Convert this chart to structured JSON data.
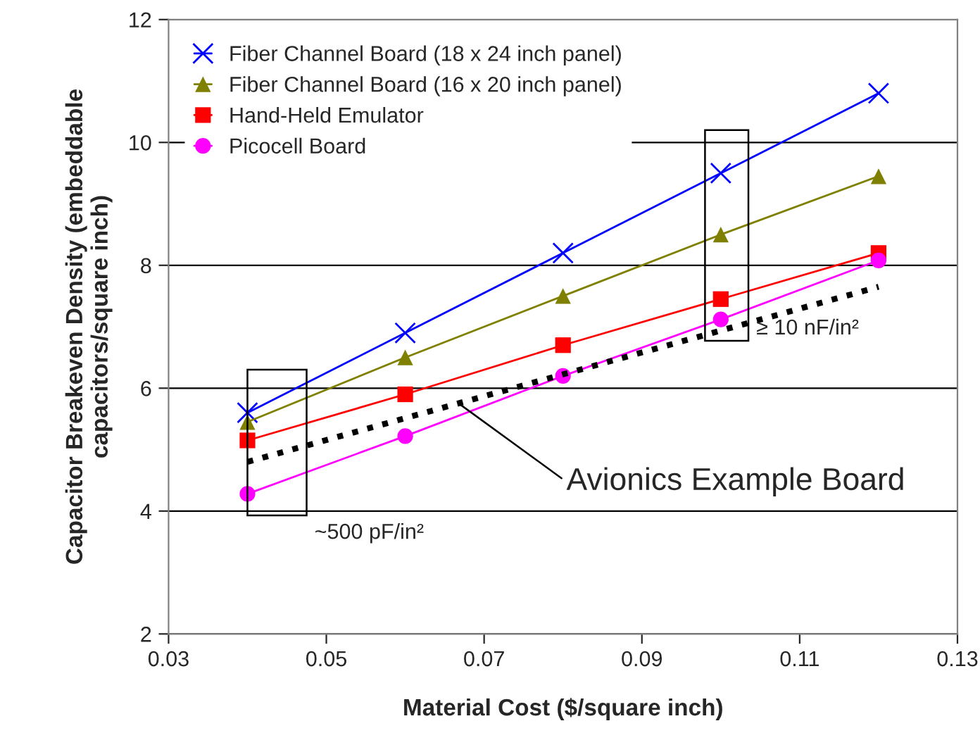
{
  "chart_data": {
    "type": "line",
    "xlabel": "Material Cost ($/square inch)",
    "ylabel": "Capacitor Breakeven Density (embeddable\ncapacitors/square inch)",
    "x": [
      0.04,
      0.06,
      0.08,
      0.1,
      0.12
    ],
    "series": [
      {
        "name": "Fiber Channel Board (18 x 24 inch panel)",
        "color": "#0000ff",
        "marker": "cross",
        "values": [
          5.6,
          6.9,
          8.2,
          9.5,
          10.8
        ]
      },
      {
        "name": "Fiber Channel Board (16 x 20 inch panel)",
        "color": "#808000",
        "marker": "triangle",
        "values": [
          5.45,
          6.5,
          7.5,
          8.5,
          9.45
        ]
      },
      {
        "name": "Hand-Held Emulator",
        "color": "#ff0000",
        "marker": "square",
        "values": [
          5.15,
          5.9,
          6.7,
          7.45,
          8.2
        ]
      },
      {
        "name": "Picocell Board",
        "color": "#ff00ff",
        "marker": "circle",
        "values": [
          4.28,
          5.22,
          6.2,
          7.12,
          8.08
        ]
      },
      {
        "color": "#000000",
        "marker": "none",
        "line_style": "dotted",
        "x": [
          0.04,
          0.12
        ],
        "values": [
          4.8,
          7.65
        ]
      }
    ],
    "annotations": [
      "~500 pF/in²",
      "≥ 10 nF/in²",
      {
        "text": "Avionics Example Board",
        "x": 0.0668,
        "y": 5.75
      }
    ],
    "xlim": [
      0.03,
      0.13
    ],
    "xticks": [
      0.03,
      0.05,
      0.07,
      0.09,
      0.11,
      0.13
    ],
    "ylim": [
      2,
      12
    ],
    "yticks": [
      2,
      4,
      6,
      8,
      10,
      12
    ],
    "grid": "y",
    "legend": "top left"
  }
}
